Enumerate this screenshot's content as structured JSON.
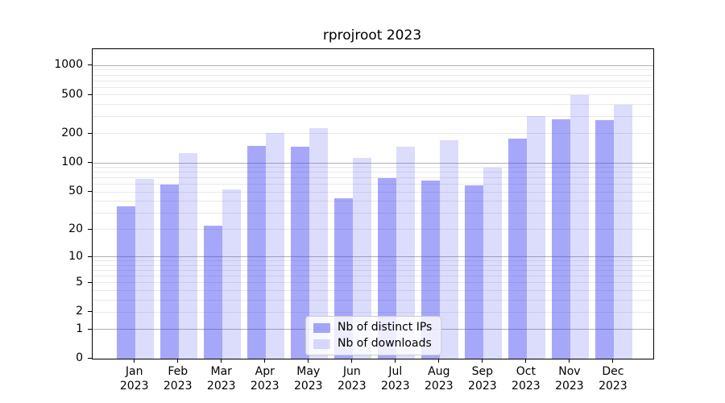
{
  "title": "rprojroot 2023",
  "legend": {
    "items": [
      {
        "label": "Nb of distinct IPs",
        "color": "rgba(60,60,243,0.45)"
      },
      {
        "label": "Nb of downloads",
        "color": "rgba(60,60,243,0.18)"
      }
    ]
  },
  "colors": {
    "bar_distinct_ips": "rgba(60,60,243,0.45)",
    "bar_downloads": "rgba(60,60,243,0.18)",
    "grid_major": "#b0b0b0",
    "grid_minor": "#e8e8e8",
    "spine": "#000000",
    "legend_border": "#cccccc",
    "legend_background": "rgba(255,255,255,0.8)"
  },
  "chart_data": {
    "type": "bar",
    "title": "rprojroot 2023",
    "xlabel": "",
    "ylabel": "",
    "yscale": "log1p",
    "grid": true,
    "legend_position": "lower center",
    "categories": [
      "Jan 2023",
      "Feb 2023",
      "Mar 2023",
      "Apr 2023",
      "May 2023",
      "Jun 2023",
      "Jul 2023",
      "Aug 2023",
      "Sep 2023",
      "Oct 2023",
      "Nov 2023",
      "Dec 2023"
    ],
    "series": [
      {
        "key": "distinct-ips",
        "name": "Nb of distinct IPs",
        "color": "rgba(60,60,243,0.45)",
        "values": [
          35,
          60,
          22,
          150,
          147,
          43,
          70,
          66,
          58,
          178,
          283,
          277
        ]
      },
      {
        "key": "downloads",
        "name": "Nb of downloads",
        "color": "rgba(60,60,243,0.18)",
        "values": [
          68,
          126,
          53,
          205,
          226,
          113,
          147,
          170,
          89,
          305,
          498,
          394
        ]
      }
    ],
    "y_ticks": [
      1000,
      500,
      200,
      100,
      50,
      20,
      10,
      5,
      2,
      1,
      0
    ],
    "grid_major_values": [
      1,
      10,
      100,
      1000
    ],
    "grid_minor_values": [
      2,
      3,
      4,
      5,
      6,
      7,
      8,
      9,
      20,
      30,
      40,
      50,
      60,
      70,
      80,
      90,
      200,
      300,
      400,
      500,
      600,
      700,
      800,
      900
    ],
    "ylim": [
      0,
      1470
    ]
  }
}
